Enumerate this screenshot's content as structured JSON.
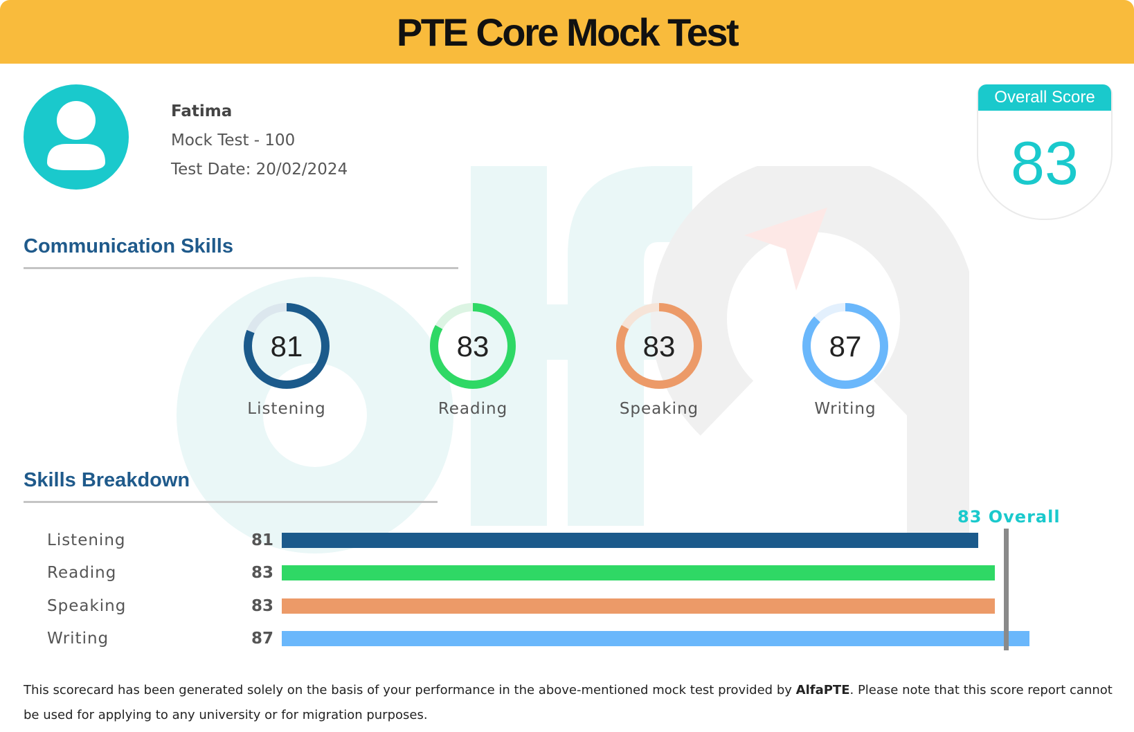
{
  "header": {
    "title": "PTE Core Mock Test"
  },
  "user": {
    "name": "Fatima",
    "test_name": "Mock Test - 100",
    "test_date": "Test Date: 20/02/2024",
    "avatar_icon": "user-icon"
  },
  "overall": {
    "label": "Overall Score",
    "score": "83"
  },
  "communication": {
    "title": "Communication Skills",
    "skills": [
      {
        "name": "Listening",
        "score": 81,
        "color": "#1b5a8b",
        "track": "#dce7ee"
      },
      {
        "name": "Reading",
        "score": 83,
        "color": "#2fd865",
        "track": "#dcf4e3"
      },
      {
        "name": "Speaking",
        "score": 83,
        "color": "#ec9a68",
        "track": "#f6e4d8"
      },
      {
        "name": "Writing",
        "score": 87,
        "color": "#6ab7fb",
        "track": "#e3f0fd"
      }
    ]
  },
  "breakdown": {
    "title": "Skills Breakdown",
    "overall_marker_label": "83 Overall",
    "overall_marker_value": 83,
    "rows": [
      {
        "name": "Listening",
        "score": "81",
        "value": 81,
        "color": "#1b5a8b"
      },
      {
        "name": "Reading",
        "score": "83",
        "value": 83,
        "color": "#2fd865"
      },
      {
        "name": "Speaking",
        "score": "83",
        "value": 83,
        "color": "#ec9a68"
      },
      {
        "name": "Writing",
        "score": "87",
        "value": 87,
        "color": "#6ab7fb"
      }
    ]
  },
  "footer": {
    "disclaimer_before": "This scorecard has been generated solely on the basis of your performance in the above-mentioned mock test provided by ",
    "brand": "AlfaPTE",
    "disclaimer_after": ". Please note that this score report cannot be used for applying to any university or for migration purposes."
  },
  "watermark": {
    "text": "alfa"
  }
}
